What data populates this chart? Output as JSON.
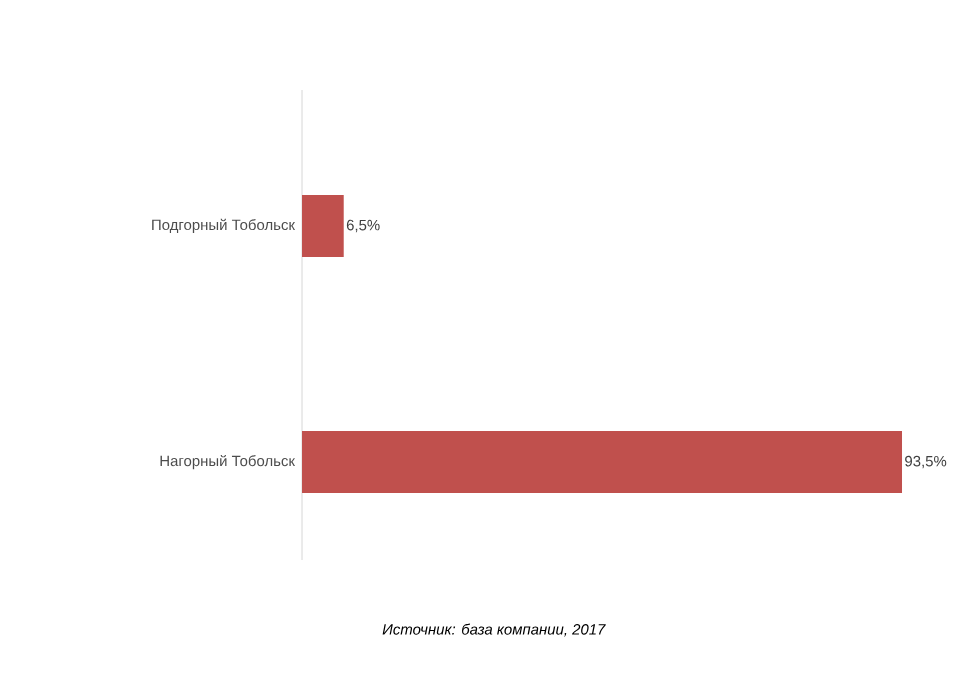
{
  "chart_data": {
    "type": "bar",
    "orientation": "horizontal",
    "categories": [
      "Подгорный Тобольск",
      "Нагорный Тобольск"
    ],
    "values": [
      6.5,
      93.5
    ],
    "value_labels": [
      "6,5%",
      "93,5%"
    ],
    "color": "#c0504d",
    "tick_labels": "y",
    "annotations": [
      "*Источник: база компании, 2017*"
    ]
  }
}
